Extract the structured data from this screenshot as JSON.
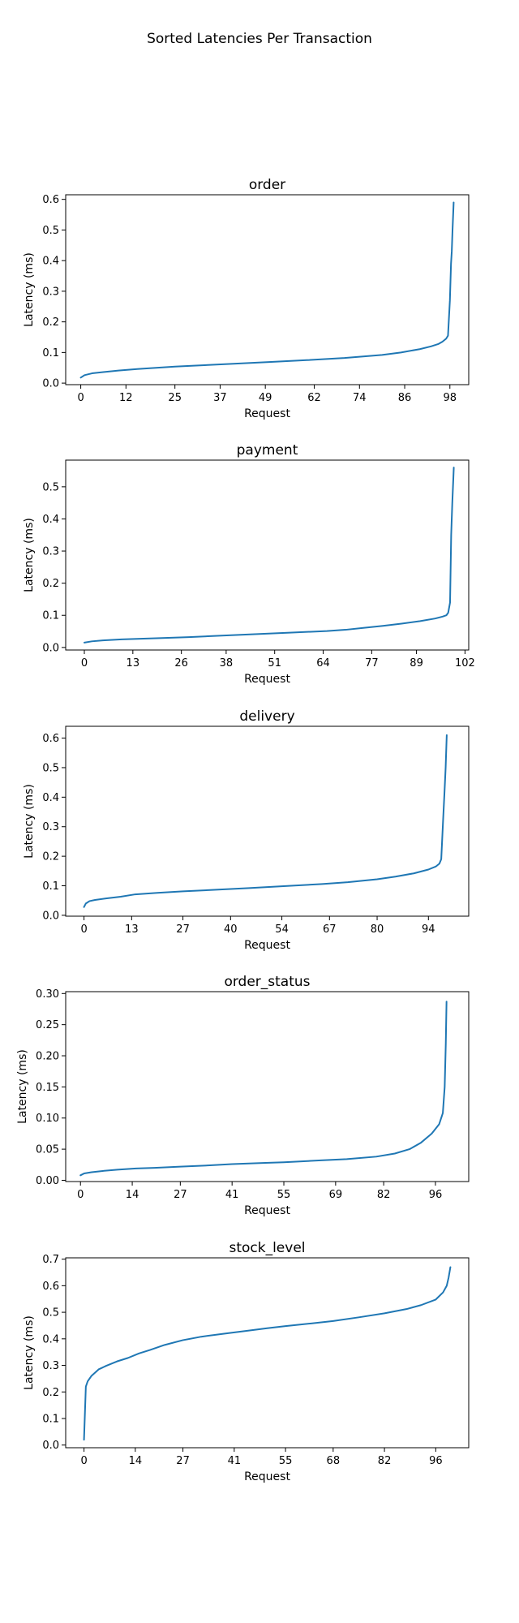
{
  "figure_title": "Sorted Latencies Per Transaction",
  "chart_data": [
    {
      "type": "line",
      "title": "order",
      "xlabel": "Request",
      "ylabel": "Latency (ms)",
      "xlim": [
        -4,
        103
      ],
      "ylim": [
        -0.005,
        0.615
      ],
      "xticks": [
        0,
        12,
        25,
        37,
        49,
        62,
        74,
        86,
        98
      ],
      "xtick_labels": [
        "0",
        "12",
        "25",
        "37",
        "49",
        "62",
        "74",
        "86",
        "98"
      ],
      "yticks": [
        0.0,
        0.1,
        0.2,
        0.3,
        0.4,
        0.5,
        0.6
      ],
      "ytick_labels": [
        "0.0",
        "0.1",
        "0.2",
        "0.3",
        "0.4",
        "0.5",
        "0.6"
      ],
      "color": "#1f77b4",
      "grid": false,
      "series": [
        {
          "x": [
            0,
            1,
            3,
            6,
            10,
            15,
            20,
            25,
            30,
            40,
            50,
            60,
            70,
            80,
            85,
            90,
            93,
            95,
            96,
            97,
            97.5,
            98,
            98.3,
            98.5,
            98.7,
            99
          ],
          "y": [
            0.018,
            0.026,
            0.032,
            0.036,
            0.041,
            0.046,
            0.05,
            0.054,
            0.057,
            0.063,
            0.069,
            0.075,
            0.082,
            0.092,
            0.1,
            0.111,
            0.12,
            0.128,
            0.135,
            0.145,
            0.155,
            0.27,
            0.39,
            0.43,
            0.5,
            0.59
          ]
        }
      ]
    },
    {
      "type": "line",
      "title": "payment",
      "xlabel": "Request",
      "ylabel": "Latency (ms)",
      "xlim": [
        -5,
        103
      ],
      "ylim": [
        -0.008,
        0.583
      ],
      "xticks": [
        0,
        13,
        26,
        38,
        51,
        64,
        77,
        89,
        102
      ],
      "xtick_labels": [
        "0",
        "13",
        "26",
        "38",
        "51",
        "64",
        "77",
        "89",
        "102"
      ],
      "yticks": [
        0.0,
        0.1,
        0.2,
        0.3,
        0.4,
        0.5
      ],
      "ytick_labels": [
        "0.0",
        "0.1",
        "0.2",
        "0.3",
        "0.4",
        "0.5"
      ],
      "color": "#1f77b4",
      "grid": false,
      "series": [
        {
          "x": [
            0,
            2,
            5,
            10,
            15,
            20,
            28,
            35,
            45,
            55,
            65,
            70,
            75,
            80,
            85,
            90,
            94,
            96,
            97,
            97.5,
            98,
            98.3,
            98.6,
            99
          ],
          "y": [
            0.015,
            0.019,
            0.022,
            0.025,
            0.027,
            0.029,
            0.032,
            0.036,
            0.041,
            0.046,
            0.051,
            0.055,
            0.061,
            0.067,
            0.074,
            0.082,
            0.09,
            0.096,
            0.1,
            0.108,
            0.14,
            0.35,
            0.45,
            0.56
          ]
        }
      ]
    },
    {
      "type": "line",
      "title": "delivery",
      "xlabel": "Request",
      "ylabel": "Latency (ms)",
      "xlim": [
        -5,
        105
      ],
      "ylim": [
        -0.003,
        0.64
      ],
      "xticks": [
        0,
        13,
        27,
        40,
        54,
        67,
        80,
        94
      ],
      "xtick_labels": [
        "0",
        "13",
        "27",
        "40",
        "54",
        "67",
        "80",
        "94"
      ],
      "yticks": [
        0.0,
        0.1,
        0.2,
        0.3,
        0.4,
        0.5,
        0.6
      ],
      "ytick_labels": [
        "0.0",
        "0.1",
        "0.2",
        "0.3",
        "0.4",
        "0.5",
        "0.6"
      ],
      "color": "#1f77b4",
      "grid": false,
      "series": [
        {
          "x": [
            0,
            0.5,
            1.5,
            3,
            6,
            10,
            14,
            20,
            27,
            35,
            45,
            55,
            65,
            72,
            80,
            85,
            90,
            94,
            96,
            97,
            97.5,
            98,
            98.4,
            98.7,
            99
          ],
          "y": [
            0.028,
            0.04,
            0.048,
            0.052,
            0.057,
            0.063,
            0.071,
            0.076,
            0.081,
            0.086,
            0.092,
            0.099,
            0.106,
            0.112,
            0.122,
            0.131,
            0.142,
            0.155,
            0.165,
            0.175,
            0.19,
            0.32,
            0.42,
            0.5,
            0.61
          ]
        }
      ]
    },
    {
      "type": "line",
      "title": "order_status",
      "xlabel": "Request",
      "ylabel": "Latency (ms)",
      "xlim": [
        -4,
        105
      ],
      "ylim": [
        -0.002,
        0.303
      ],
      "xticks": [
        0,
        14,
        27,
        41,
        55,
        69,
        82,
        96
      ],
      "xtick_labels": [
        "0",
        "14",
        "27",
        "41",
        "55",
        "69",
        "82",
        "96"
      ],
      "yticks": [
        0.0,
        0.05,
        0.1,
        0.15,
        0.2,
        0.25,
        0.3
      ],
      "ytick_labels": [
        "0.00",
        "0.05",
        "0.10",
        "0.15",
        "0.20",
        "0.25",
        "0.30"
      ],
      "color": "#1f77b4",
      "grid": false,
      "series": [
        {
          "x": [
            0,
            1,
            3,
            6,
            10,
            15,
            20,
            27,
            35,
            41,
            50,
            55,
            65,
            72,
            80,
            85,
            89,
            92,
            95,
            97,
            98,
            98.5,
            98.8,
            99
          ],
          "y": [
            0.008,
            0.011,
            0.013,
            0.015,
            0.017,
            0.019,
            0.02,
            0.022,
            0.024,
            0.026,
            0.028,
            0.029,
            0.032,
            0.034,
            0.038,
            0.043,
            0.05,
            0.06,
            0.075,
            0.09,
            0.108,
            0.15,
            0.22,
            0.287
          ]
        }
      ]
    },
    {
      "type": "line",
      "title": "stock_level",
      "xlabel": "Request",
      "ylabel": "Latency (ms)",
      "xlim": [
        -5,
        105
      ],
      "ylim": [
        -0.01,
        0.705
      ],
      "xticks": [
        0,
        14,
        27,
        41,
        55,
        68,
        82,
        96
      ],
      "xtick_labels": [
        "0",
        "14",
        "27",
        "41",
        "55",
        "68",
        "82",
        "96"
      ],
      "yticks": [
        0.0,
        0.1,
        0.2,
        0.3,
        0.4,
        0.5,
        0.6,
        0.7
      ],
      "ytick_labels": [
        "0.0",
        "0.1",
        "0.2",
        "0.3",
        "0.4",
        "0.5",
        "0.6",
        "0.7"
      ],
      "color": "#1f77b4",
      "grid": false,
      "series": [
        {
          "x": [
            0,
            0.5,
            1,
            2,
            4,
            6,
            9,
            12,
            15,
            18,
            22,
            27,
            32,
            38,
            45,
            50,
            55,
            62,
            68,
            75,
            82,
            88,
            92,
            96,
            98,
            99,
            99.5,
            100
          ],
          "y": [
            0.02,
            0.22,
            0.24,
            0.26,
            0.285,
            0.298,
            0.315,
            0.328,
            0.345,
            0.358,
            0.377,
            0.395,
            0.408,
            0.419,
            0.431,
            0.44,
            0.448,
            0.458,
            0.467,
            0.481,
            0.496,
            0.512,
            0.527,
            0.548,
            0.575,
            0.6,
            0.63,
            0.67
          ]
        }
      ]
    }
  ]
}
